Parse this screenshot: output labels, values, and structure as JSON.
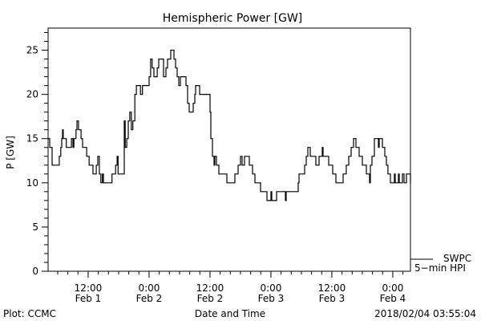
{
  "chart_data": {
    "type": "line",
    "title": "Hemispheric Power [GW]",
    "xlabel": "Date and Time",
    "ylabel": "P [GW]",
    "x_units": "hours since 2018-02-01 00:00 UT",
    "xlim": [
      4.11,
      75.48
    ],
    "ylim": [
      0,
      27.5
    ],
    "yticks": [
      0,
      5,
      10,
      15,
      20,
      25
    ],
    "xticks": [
      {
        "x": 12,
        "time": "12:00",
        "date": "Feb 1"
      },
      {
        "x": 24,
        "time": "0:00",
        "date": "Feb 2"
      },
      {
        "x": 36,
        "time": "12:00",
        "date": "Feb 2"
      },
      {
        "x": 48,
        "time": "0:00",
        "date": "Feb 3"
      },
      {
        "x": 60,
        "time": "12:00",
        "date": "Feb 3"
      },
      {
        "x": 72,
        "time": "0:00",
        "date": "Feb 4"
      }
    ],
    "grid": false,
    "legend": {
      "placement": "right-bottom",
      "entries": [
        {
          "line": "SWPC",
          "label": "5-min HPI"
        }
      ]
    },
    "series": [
      {
        "name": "SWPC 5-min HPI",
        "step": true,
        "points": [
          [
            4.11,
            15
          ],
          [
            4.27,
            15
          ],
          [
            4.43,
            14
          ],
          [
            4.9,
            12
          ],
          [
            6.0,
            12
          ],
          [
            6.3,
            13
          ],
          [
            6.6,
            14
          ],
          [
            6.8,
            15
          ],
          [
            6.95,
            16
          ],
          [
            7.1,
            15
          ],
          [
            7.6,
            15
          ],
          [
            7.7,
            14
          ],
          [
            8.5,
            14
          ],
          [
            8.7,
            15
          ],
          [
            9.0,
            14
          ],
          [
            9.2,
            15
          ],
          [
            9.6,
            16
          ],
          [
            9.8,
            17
          ],
          [
            10.1,
            16
          ],
          [
            10.6,
            15
          ],
          [
            10.9,
            14
          ],
          [
            11.7,
            13
          ],
          [
            12.2,
            12
          ],
          [
            12.95,
            11
          ],
          [
            13.6,
            12
          ],
          [
            13.9,
            13
          ],
          [
            14.2,
            11
          ],
          [
            14.5,
            10
          ],
          [
            14.8,
            11
          ],
          [
            15.0,
            10
          ],
          [
            16.6,
            10
          ],
          [
            16.7,
            11
          ],
          [
            17.4,
            12
          ],
          [
            17.7,
            13
          ],
          [
            17.9,
            11
          ],
          [
            19.0,
            11
          ],
          [
            19.11,
            17
          ],
          [
            19.3,
            14
          ],
          [
            19.6,
            15
          ],
          [
            19.9,
            17
          ],
          [
            20.2,
            18
          ],
          [
            20.5,
            16
          ],
          [
            20.8,
            17
          ],
          [
            21.2,
            20
          ],
          [
            21.5,
            21
          ],
          [
            22.3,
            20
          ],
          [
            22.7,
            21
          ],
          [
            24.0,
            22
          ],
          [
            24.3,
            24
          ],
          [
            24.6,
            23
          ],
          [
            24.95,
            22
          ],
          [
            25.6,
            23
          ],
          [
            25.9,
            24
          ],
          [
            26.21,
            24
          ],
          [
            26.84,
            22
          ],
          [
            27.32,
            23
          ],
          [
            27.64,
            24
          ],
          [
            28.27,
            25
          ],
          [
            28.58,
            25
          ],
          [
            28.9,
            24
          ],
          [
            29.21,
            23
          ],
          [
            29.53,
            22
          ],
          [
            29.85,
            21
          ],
          [
            30.16,
            22
          ],
          [
            30.95,
            22
          ],
          [
            31.27,
            21
          ],
          [
            31.58,
            19
          ],
          [
            31.9,
            18
          ],
          [
            32.37,
            18
          ],
          [
            32.69,
            19
          ],
          [
            33.0,
            20
          ],
          [
            33.16,
            21
          ],
          [
            33.64,
            21
          ],
          [
            33.95,
            20
          ],
          [
            35.69,
            20
          ],
          [
            36.0,
            18
          ],
          [
            36.16,
            15
          ],
          [
            36.48,
            13
          ],
          [
            36.79,
            12
          ],
          [
            36.95,
            13
          ],
          [
            37.27,
            12
          ],
          [
            37.74,
            11
          ],
          [
            39.32,
            10
          ],
          [
            40.9,
            11
          ],
          [
            41.53,
            12
          ],
          [
            42.0,
            13
          ],
          [
            42.32,
            12
          ],
          [
            42.79,
            13
          ],
          [
            43.74,
            12
          ],
          [
            44.37,
            11
          ],
          [
            44.85,
            10
          ],
          [
            45.95,
            9
          ],
          [
            47.22,
            8
          ],
          [
            48.0,
            9
          ],
          [
            48.16,
            8
          ],
          [
            49.11,
            9
          ],
          [
            50.53,
            9
          ],
          [
            50.85,
            8
          ],
          [
            51.0,
            9
          ],
          [
            51.16,
            9
          ],
          [
            53.37,
            10
          ],
          [
            53.53,
            11
          ],
          [
            54.63,
            12
          ],
          [
            54.95,
            13
          ],
          [
            55.27,
            14
          ],
          [
            55.74,
            13
          ],
          [
            56.85,
            12
          ],
          [
            57.48,
            13
          ],
          [
            58.11,
            14
          ],
          [
            58.27,
            13
          ],
          [
            59.37,
            12
          ],
          [
            60.16,
            11
          ],
          [
            60.79,
            10
          ],
          [
            62.21,
            11
          ],
          [
            62.84,
            12
          ],
          [
            63.32,
            13
          ],
          [
            63.79,
            14
          ],
          [
            64.27,
            15
          ],
          [
            64.74,
            14
          ],
          [
            65.37,
            13
          ],
          [
            66.0,
            12
          ],
          [
            66.79,
            11
          ],
          [
            67.42,
            10
          ],
          [
            67.58,
            12
          ],
          [
            67.9,
            13
          ],
          [
            68.37,
            15
          ],
          [
            69.16,
            14
          ],
          [
            69.32,
            15
          ],
          [
            69.95,
            14
          ],
          [
            70.42,
            13
          ],
          [
            70.74,
            12
          ],
          [
            71.05,
            11
          ],
          [
            71.53,
            10
          ],
          [
            72.32,
            11
          ],
          [
            72.48,
            10
          ],
          [
            73.11,
            11
          ],
          [
            73.27,
            10
          ],
          [
            73.9,
            11
          ],
          [
            74.21,
            10
          ],
          [
            74.69,
            11
          ],
          [
            75.48,
            10
          ]
        ]
      }
    ]
  },
  "footer": {
    "left": "Plot: CCMC",
    "center": "Date and Time",
    "right": "2018/02/04 03:55:04"
  },
  "legend": {
    "line1": "SWPC",
    "line2": "5−min HPI"
  }
}
